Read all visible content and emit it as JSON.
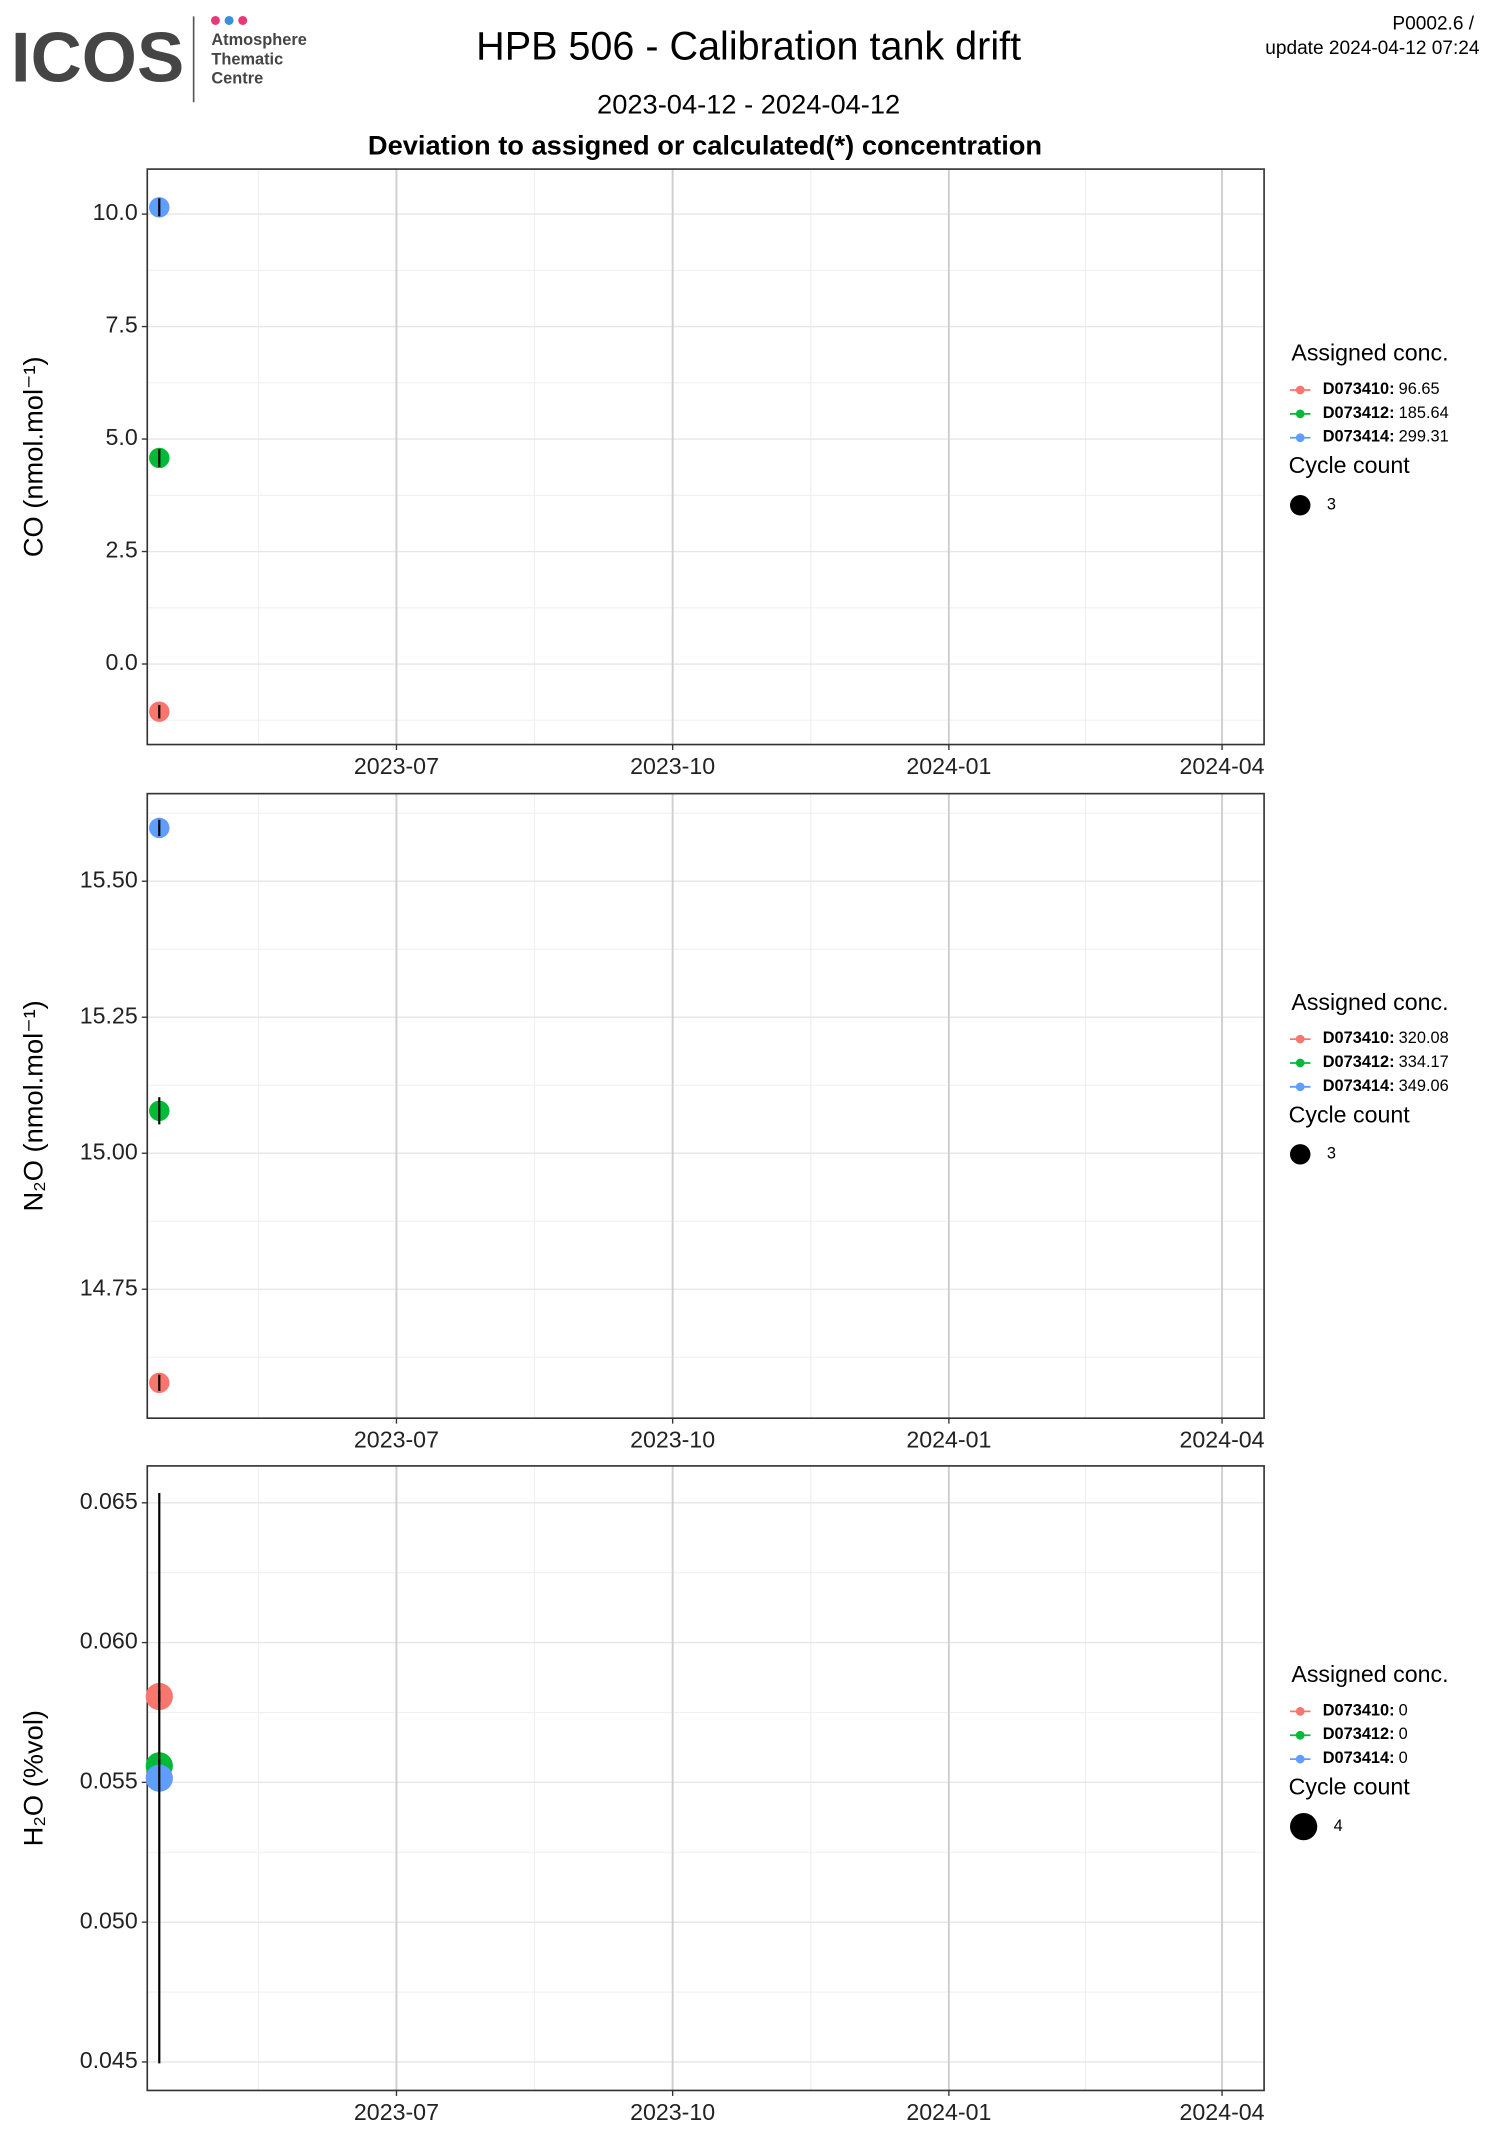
{
  "header": {
    "logo": "ICOS",
    "logo_lines": [
      "Atmosphere",
      "Thematic",
      "Centre"
    ],
    "title": "HPB 506 - Calibration tank drift",
    "period": "2023-04-12 - 2024-04-12",
    "subtitle": "Deviation to assigned or calculated(*) concentration",
    "corner": [
      "P0002.6 /",
      "update  2024-04-12 07:24"
    ]
  },
  "chart_data": [
    {
      "type": "scatter",
      "y_label": "CO (nmol.mol⁻¹)",
      "xlim": [
        "2023-04-09",
        "2024-04-15"
      ],
      "xticks": [
        {
          "value": "2023-07-01",
          "label": "2023-07"
        },
        {
          "value": "2023-10-01",
          "label": "2023-10"
        },
        {
          "value": "2024-01-01",
          "label": "2024-01"
        },
        {
          "value": "2024-04-01",
          "label": "2024-04"
        }
      ],
      "ylim": [
        -1.79,
        11.0
      ],
      "yticks": [
        {
          "value": 0,
          "label": "0.0"
        },
        {
          "value": 2.5,
          "label": "2.5"
        },
        {
          "value": 5,
          "label": "5.0"
        },
        {
          "value": 7.5,
          "label": "7.5"
        },
        {
          "value": 10,
          "label": "10.0"
        }
      ],
      "grid": true,
      "legend_title": "Assigned conc.",
      "size_title": "Cycle count",
      "size_legend": [
        3
      ],
      "series": [
        {
          "name": "D073410:",
          "assigned": 96.65,
          "color": "#F8766D",
          "x": [
            "2023-04-13"
          ],
          "values": [
            -1.06
          ],
          "errors": [
            0.15
          ],
          "size": [
            3
          ]
        },
        {
          "name": "D073412:",
          "assigned": 185.64,
          "color": "#00BA38",
          "x": [
            "2023-04-13"
          ],
          "values": [
            4.58
          ],
          "errors": [
            0.2
          ],
          "size": [
            3
          ]
        },
        {
          "name": "D073414:",
          "assigned": 299.31,
          "color": "#619CFF",
          "x": [
            "2023-04-13"
          ],
          "values": [
            10.15
          ],
          "errors": [
            0.2
          ],
          "size": [
            3
          ]
        }
      ]
    },
    {
      "type": "scatter",
      "y_label": "N₂O (nmol.mol⁻¹)",
      "xlim": [
        "2023-04-09",
        "2024-04-15"
      ],
      "xticks": [
        {
          "value": "2023-07-01",
          "label": "2023-07"
        },
        {
          "value": "2023-10-01",
          "label": "2023-10"
        },
        {
          "value": "2024-01-01",
          "label": "2024-01"
        },
        {
          "value": "2024-04-01",
          "label": "2024-04"
        }
      ],
      "ylim": [
        14.513,
        15.661
      ],
      "yticks": [
        14.75,
        {
          "value": 15,
          "label": "15.00"
        },
        15.25,
        {
          "value": 15.5,
          "label": "15.50"
        }
      ],
      "grid": true,
      "legend_title": "Assigned conc.",
      "size_title": "Cycle count",
      "size_legend": [
        3
      ],
      "series": [
        {
          "name": "D073410:",
          "assigned": 320.08,
          "color": "#F8766D",
          "x": [
            "2023-04-13"
          ],
          "values": [
            14.578
          ],
          "errors": [
            0.015
          ],
          "size": [
            3
          ]
        },
        {
          "name": "D073412:",
          "assigned": 334.17,
          "color": "#00BA38",
          "x": [
            "2023-04-13"
          ],
          "values": [
            15.078
          ],
          "errors": [
            0.025
          ],
          "size": [
            3
          ]
        },
        {
          "name": "D073414:",
          "assigned": 349.06,
          "color": "#619CFF",
          "x": [
            "2023-04-13"
          ],
          "values": [
            15.598
          ],
          "errors": [
            0.015
          ],
          "size": [
            3
          ]
        }
      ]
    },
    {
      "type": "scatter",
      "y_label": "H₂O (%vol)",
      "xlim": [
        "2023-04-09",
        "2024-04-15"
      ],
      "xticks": [
        {
          "value": "2023-07-01",
          "label": "2023-07"
        },
        {
          "value": "2023-10-01",
          "label": "2023-10"
        },
        {
          "value": "2024-01-01",
          "label": "2024-01"
        },
        {
          "value": "2024-04-01",
          "label": "2024-04"
        }
      ],
      "ylim": [
        0.04398,
        0.06632
      ],
      "yticks": [
        0.045,
        {
          "value": 0.05,
          "label": "0.050"
        },
        0.055,
        {
          "value": 0.06,
          "label": "0.060"
        },
        0.065
      ],
      "grid": true,
      "legend_title": "Assigned conc.",
      "size_title": "Cycle count",
      "size_legend": [
        4
      ],
      "series": [
        {
          "name": "D073410:",
          "assigned": 0,
          "color": "#F8766D",
          "x": [
            "2023-04-13"
          ],
          "values": [
            0.05807
          ],
          "errors": [
            0.0002
          ],
          "size": [
            4
          ]
        },
        {
          "name": "D073412:",
          "assigned": 0,
          "color": "#00BA38",
          "x": [
            "2023-04-13"
          ],
          "values": [
            0.05559
          ],
          "errors": [
            0.0002
          ],
          "size": [
            4
          ]
        },
        {
          "name": "D073414:",
          "assigned": 0,
          "color": "#619CFF",
          "x": [
            "2023-04-13"
          ],
          "values": [
            0.05515
          ],
          "errors": [
            0.0102
          ],
          "size": [
            4
          ]
        }
      ]
    }
  ]
}
